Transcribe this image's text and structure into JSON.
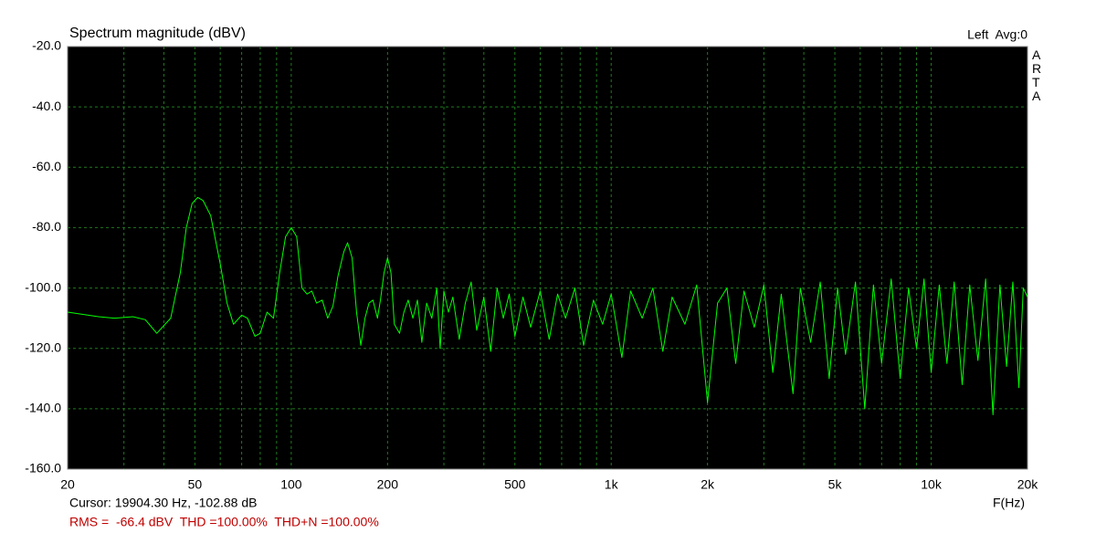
{
  "chart_data": {
    "type": "line",
    "title": "Spectrum magnitude (dBV)",
    "status": "Left  Avg:0",
    "side_label": "ARTA",
    "cursor": "Cursor: 19904.30 Hz, -102.88 dB",
    "measurements": "RMS =  -66.4 dBV  THD =100.00%  THD+N =100.00%",
    "x_label": "F(Hz)",
    "xscale": "log",
    "grid": true,
    "color": "#00ff00",
    "xlim": [
      20,
      20000
    ],
    "ylim": [
      -160,
      -20
    ],
    "xticks": [
      20,
      50,
      100,
      200,
      500,
      {
        "value": 1000,
        "label": "1k"
      },
      {
        "value": 2000,
        "label": "2k"
      },
      {
        "value": 5000,
        "label": "5k"
      },
      {
        "value": 10000,
        "label": "10k"
      },
      {
        "value": 20000,
        "label": "20k"
      }
    ],
    "xminorticks": [
      30,
      40,
      60,
      70,
      80,
      90,
      300,
      400,
      600,
      700,
      800,
      900,
      3000,
      4000,
      6000,
      7000,
      8000,
      9000
    ],
    "yticks": [
      {
        "value": -20,
        "label": "-20.0"
      },
      {
        "value": -40,
        "label": "-40.0"
      },
      {
        "value": -60,
        "label": "-60.0"
      },
      {
        "value": -80,
        "label": "-80.0"
      },
      {
        "value": -100,
        "label": "-100.0"
      },
      {
        "value": -120,
        "label": "-120.0"
      },
      {
        "value": -140,
        "label": "-140.0"
      },
      {
        "value": -160,
        "label": "-160.0"
      }
    ],
    "x": [
      20,
      25,
      28,
      32,
      35,
      38,
      42,
      45,
      47,
      49,
      51,
      53,
      56,
      60,
      63,
      66,
      70,
      73,
      77,
      80,
      84,
      88,
      92,
      96,
      100,
      104,
      108,
      112,
      116,
      120,
      125,
      130,
      135,
      140,
      146,
      150,
      155,
      160,
      165,
      170,
      175,
      180,
      186,
      190,
      195,
      200,
      205,
      210,
      218,
      225,
      232,
      240,
      248,
      256,
      265,
      275,
      285,
      292,
      300,
      310,
      320,
      335,
      350,
      365,
      380,
      400,
      420,
      440,
      460,
      480,
      500,
      530,
      560,
      600,
      640,
      680,
      720,
      770,
      820,
      880,
      940,
      1000,
      1080,
      1150,
      1250,
      1350,
      1450,
      1550,
      1700,
      1850,
      2000,
      2150,
      2300,
      2450,
      2600,
      2800,
      3000,
      3200,
      3400,
      3700,
      3900,
      4200,
      4500,
      4800,
      5100,
      5400,
      5800,
      6200,
      6600,
      7000,
      7500,
      8000,
      8500,
      9000,
      9500,
      10000,
      10600,
      11200,
      11800,
      12500,
      13200,
      14000,
      14800,
      15600,
      16400,
      17200,
      18000,
      18800,
      19400,
      20000
    ],
    "values": [
      -108,
      -109.5,
      -110,
      -109.5,
      -110.5,
      -115,
      -110,
      -95,
      -80,
      -72,
      -70,
      -71,
      -76,
      -92,
      -105,
      -112,
      -109,
      -110,
      -116,
      -115,
      -108,
      -110,
      -95,
      -83,
      -80,
      -83,
      -100,
      -102,
      -101,
      -105,
      -104,
      -110,
      -106,
      -96,
      -88,
      -85,
      -90,
      -108,
      -119,
      -110,
      -105,
      -104,
      -110,
      -104,
      -95,
      -90,
      -95,
      -112,
      -115,
      -108,
      -104,
      -110,
      -104,
      -118,
      -105,
      -110,
      -100,
      -120,
      -101,
      -108,
      -103,
      -117,
      -105,
      -98,
      -114,
      -103,
      -121,
      -100,
      -110,
      -102,
      -116,
      -103,
      -113,
      -101,
      -117,
      -102,
      -110,
      -100,
      -119,
      -104,
      -112,
      -102,
      -123,
      -101,
      -110,
      -100,
      -121,
      -103,
      -112,
      -99,
      -138,
      -105,
      -100,
      -125,
      -101,
      -113,
      -99,
      -128,
      -102,
      -135,
      -100,
      -118,
      -98,
      -130,
      -100,
      -122,
      -98,
      -140,
      -99,
      -125,
      -97,
      -130,
      -100,
      -120,
      -97,
      -128,
      -99,
      -125,
      -98,
      -132,
      -99,
      -124,
      -97,
      -142,
      -99,
      -126,
      -98,
      -133,
      -100,
      -103
    ]
  }
}
